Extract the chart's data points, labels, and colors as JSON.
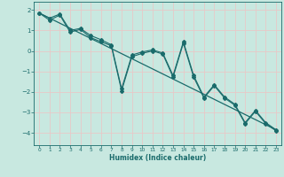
{
  "xlabel": "Humidex (Indice chaleur)",
  "xlim": [
    -0.5,
    23.5
  ],
  "ylim": [
    -4.6,
    2.4
  ],
  "yticks": [
    2,
    1,
    0,
    -1,
    -2,
    -3,
    -4
  ],
  "xticks": [
    0,
    1,
    2,
    3,
    4,
    5,
    6,
    7,
    8,
    9,
    10,
    11,
    12,
    13,
    14,
    15,
    16,
    17,
    18,
    19,
    20,
    21,
    22,
    23
  ],
  "background_color": "#c8e8e0",
  "grid_color": "#e8c8c8",
  "line_color": "#1a6b6b",
  "series1_x": [
    0,
    1,
    2,
    3,
    4,
    5,
    6,
    7,
    8,
    9,
    10,
    11,
    12,
    13,
    14,
    15,
    16,
    17,
    18,
    19,
    20,
    21,
    22,
    23
  ],
  "series1_y": [
    1.85,
    1.6,
    1.8,
    1.0,
    1.1,
    0.75,
    0.55,
    0.3,
    -1.85,
    -0.2,
    -0.05,
    0.05,
    -0.1,
    -1.2,
    0.45,
    -1.2,
    -2.25,
    -1.65,
    -2.25,
    -2.6,
    -3.5,
    -2.9,
    -3.5,
    -3.85
  ],
  "series2_x": [
    0,
    1,
    2,
    3,
    4,
    5,
    6,
    7,
    8,
    9,
    10,
    11,
    12,
    13,
    14,
    15,
    16,
    17,
    18,
    19,
    20,
    21,
    22,
    23
  ],
  "series2_y": [
    1.85,
    1.5,
    1.75,
    0.92,
    1.05,
    0.65,
    0.45,
    0.25,
    -1.95,
    -0.28,
    -0.12,
    0.0,
    -0.15,
    -1.28,
    0.38,
    -1.28,
    -2.3,
    -1.7,
    -2.3,
    -2.65,
    -3.55,
    -2.95,
    -3.55,
    -3.9
  ],
  "trend_x": [
    0,
    23
  ],
  "trend_y": [
    1.85,
    -3.85
  ]
}
